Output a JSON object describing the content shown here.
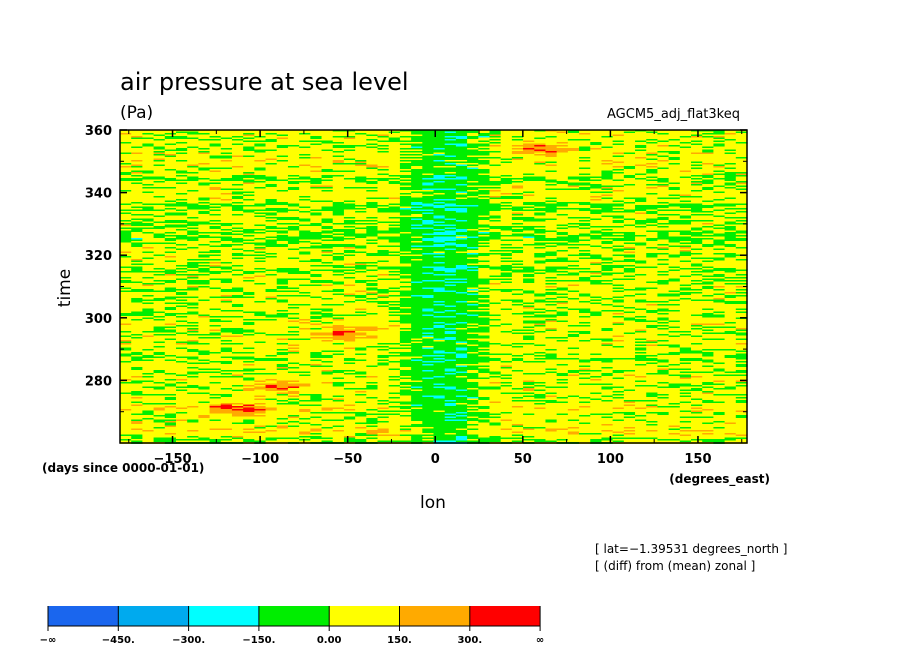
{
  "chart_data": {
    "type": "heatmap",
    "title": "air pressure at sea level",
    "units": "(Pa)",
    "experiment": "AGCM5_adj_flat3keq",
    "xlabel": "lon",
    "xunits": "(degrees_east)",
    "ylabel": "time",
    "yunits": "(days since 0000-01-01)",
    "xlim": [
      -180,
      178
    ],
    "ylim": [
      260,
      360
    ],
    "x_ticks": [
      -150,
      -100,
      -50,
      0,
      50,
      100,
      150
    ],
    "x_tick_labels": [
      "−150",
      "−100",
      "−50",
      "0",
      "50",
      "100",
      "150"
    ],
    "y_ticks": [
      280,
      300,
      320,
      340,
      360
    ],
    "y_tick_labels": [
      "280",
      "300",
      "320",
      "340",
      "360"
    ],
    "annotations": [
      "[ lat=−1.39531 degrees_north ]",
      "[ (diff) from (mean) zonal ]"
    ],
    "colorbar": {
      "boundaries": [
        -450,
        -300,
        -150,
        0,
        150,
        300
      ],
      "tick_labels": [
        "−∞",
        "−450.",
        "−300.",
        "−150.",
        "0.00",
        "150.",
        "300.",
        "∞"
      ],
      "colors": [
        "#1a66ee",
        "#00aaee",
        "#00ffff",
        "#00ee00",
        "#ffff00",
        "#ffaa00",
        "#ff0000"
      ]
    },
    "pattern": {
      "description_values": "anomaly of sea-level pressure from zonal mean; mostly within -150..150 Pa",
      "negative_band_lon": [
        -20,
        30
      ],
      "positive_patches": [
        {
          "lon": -50,
          "time": 295
        },
        {
          "lon": -110,
          "time": 271
        },
        {
          "lon": 60,
          "time": 354
        },
        {
          "lon": -90,
          "time": 278
        }
      ]
    }
  }
}
